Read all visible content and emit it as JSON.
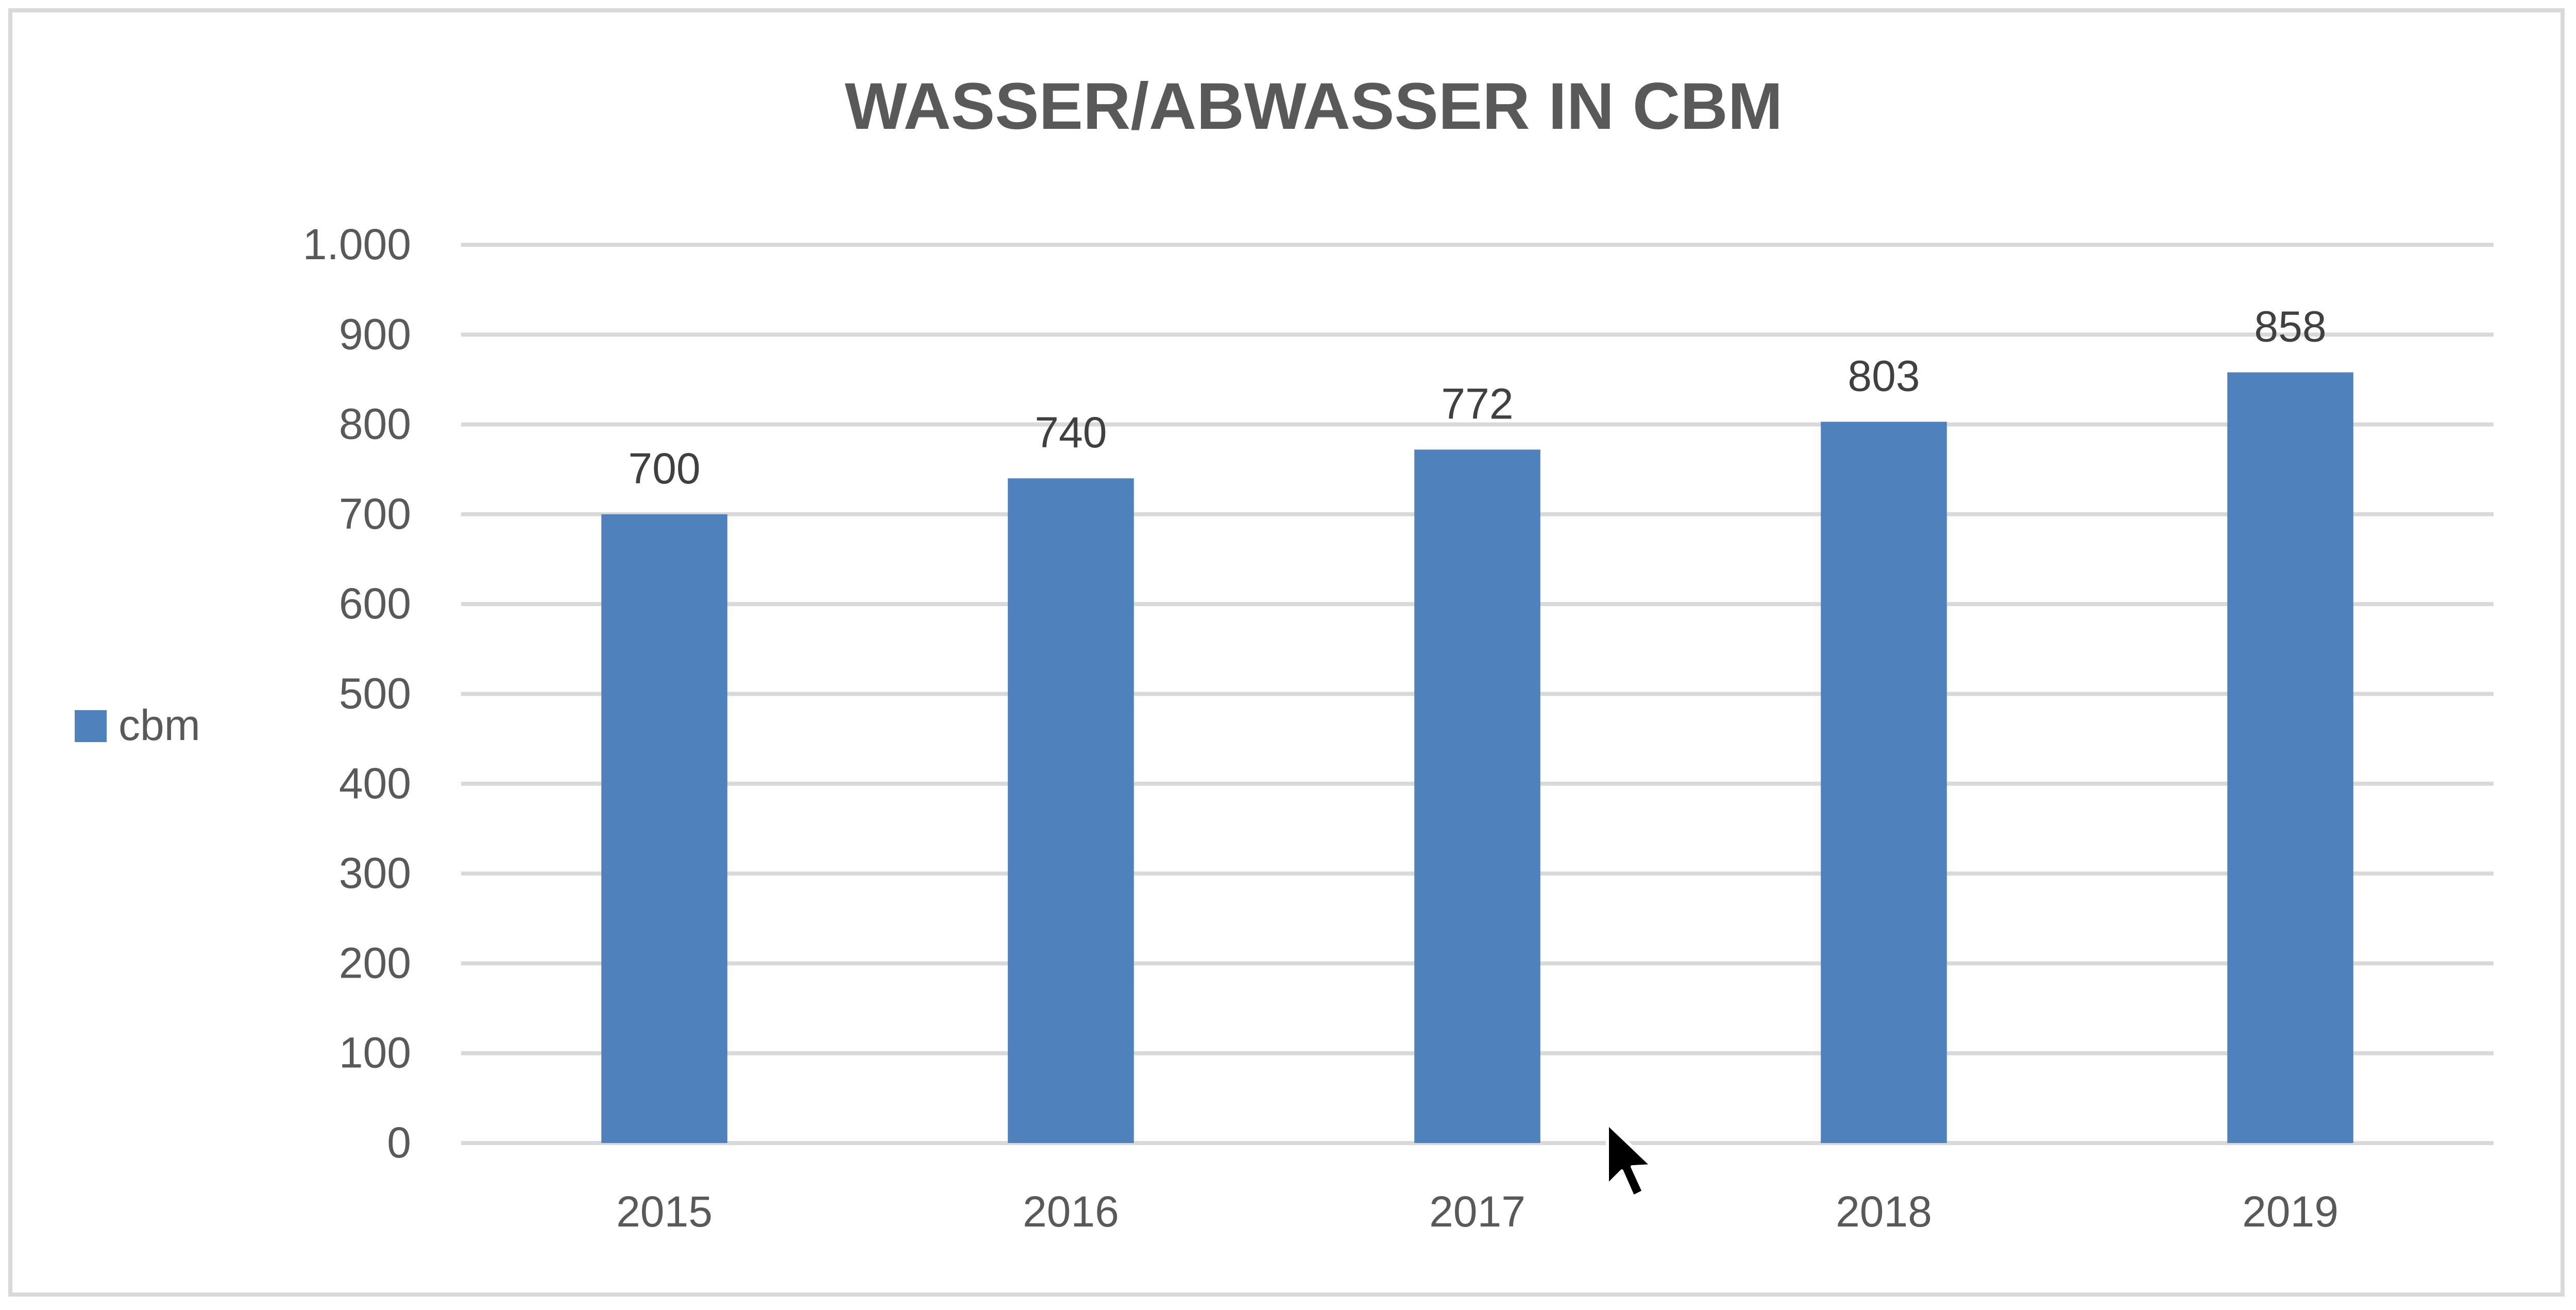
{
  "chart_data": {
    "type": "bar",
    "title": "WASSER/ABWASSER IN CBM",
    "xlabel": "",
    "ylabel": "",
    "categories": [
      "2015",
      "2016",
      "2017",
      "2018",
      "2019"
    ],
    "series": [
      {
        "name": "cbm",
        "values": [
          700,
          740,
          772,
          803,
          858
        ],
        "color": "#4f81bd"
      }
    ],
    "data_labels": [
      "700",
      "740",
      "772",
      "803",
      "858"
    ],
    "ylim": [
      0,
      1000
    ],
    "yticks": [
      0,
      100,
      200,
      300,
      400,
      500,
      600,
      700,
      800,
      900,
      1000
    ],
    "ytick_labels": [
      "0",
      "100",
      "200",
      "300",
      "400",
      "500",
      "600",
      "700",
      "800",
      "900",
      "1.000"
    ],
    "grid": true,
    "legend_position": "left"
  },
  "colors": {
    "bar": "#4f81bd",
    "gridline": "#d9d9d9",
    "text": "#595959",
    "frame": "#d9d9d9"
  },
  "cursor": {
    "icon": "mouse-pointer-icon"
  }
}
